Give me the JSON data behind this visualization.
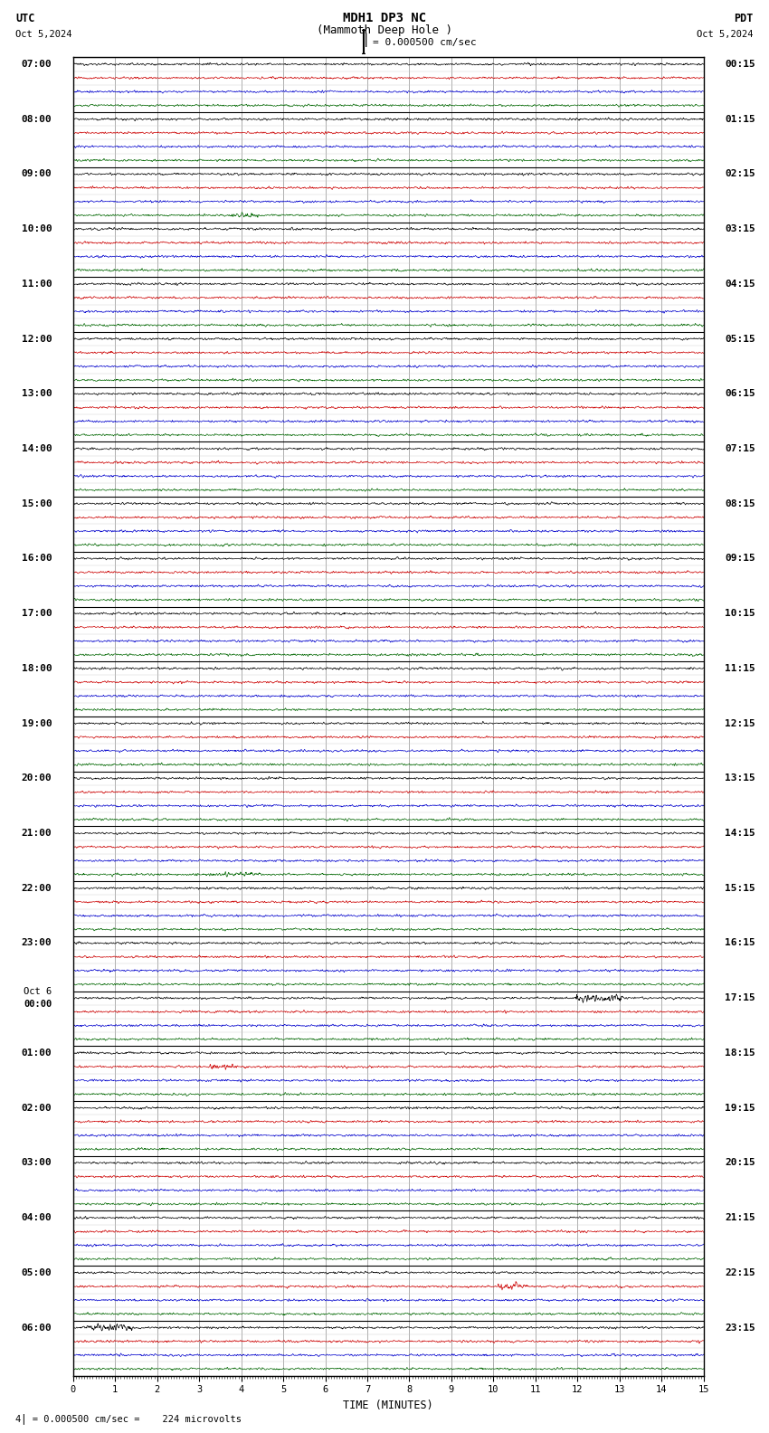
{
  "title_line1": "MDH1 DP3 NC",
  "title_line2": "(Mammoth Deep Hole )",
  "scale_text": "= 0.000500 cm/sec",
  "bottom_text": "= 0.000500 cm/sec =    224 microvolts",
  "utc_label": "UTC",
  "pdt_label": "PDT",
  "date_left": "Oct 5,2024",
  "date_right": "Oct 5,2024",
  "xlabel": "TIME (MINUTES)",
  "xmin": 0,
  "xmax": 15,
  "background_color": "#ffffff",
  "trace_colors": [
    "#000000",
    "#cc0000",
    "#0000cc",
    "#006600"
  ],
  "utc_row_labels": [
    "07:00",
    "",
    "",
    "",
    "08:00",
    "",
    "",
    "",
    "09:00",
    "",
    "",
    "",
    "10:00",
    "",
    "",
    "",
    "11:00",
    "",
    "",
    "",
    "12:00",
    "",
    "",
    "",
    "13:00",
    "",
    "",
    "",
    "14:00",
    "",
    "",
    "",
    "15:00",
    "",
    "",
    "",
    "16:00",
    "",
    "",
    "",
    "17:00",
    "",
    "",
    "",
    "18:00",
    "",
    "",
    "",
    "19:00",
    "",
    "",
    "",
    "20:00",
    "",
    "",
    "",
    "21:00",
    "",
    "",
    "",
    "22:00",
    "",
    "",
    "",
    "23:00",
    "",
    "",
    "",
    "Oct 6",
    "00:00",
    "",
    "",
    "01:00",
    "",
    "",
    "",
    "02:00",
    "",
    "",
    "",
    "03:00",
    "",
    "",
    "",
    "04:00",
    "",
    "",
    "",
    "05:00",
    "",
    "",
    "",
    "06:00",
    "",
    "",
    ""
  ],
  "oct6_row": 68,
  "pdt_row_labels": [
    "00:15",
    "",
    "",
    "",
    "01:15",
    "",
    "",
    "",
    "02:15",
    "",
    "",
    "",
    "03:15",
    "",
    "",
    "",
    "04:15",
    "",
    "",
    "",
    "05:15",
    "",
    "",
    "",
    "06:15",
    "",
    "",
    "",
    "07:15",
    "",
    "",
    "",
    "08:15",
    "",
    "",
    "",
    "09:15",
    "",
    "",
    "",
    "10:15",
    "",
    "",
    "",
    "11:15",
    "",
    "",
    "",
    "12:15",
    "",
    "",
    "",
    "13:15",
    "",
    "",
    "",
    "14:15",
    "",
    "",
    "",
    "15:15",
    "",
    "",
    "",
    "16:15",
    "",
    "",
    "",
    "17:15",
    "",
    "",
    "",
    "18:15",
    "",
    "",
    "",
    "19:15",
    "",
    "",
    "",
    "20:15",
    "",
    "",
    "",
    "21:15",
    "",
    "",
    "",
    "22:15",
    "",
    "",
    "",
    "23:15",
    "",
    "",
    ""
  ],
  "num_rows": 96,
  "noise_amplitude": 0.06,
  "grid_color": "#999999",
  "minor_grid_color": "#cccccc",
  "title_fontsize": 9,
  "label_fontsize": 8,
  "tick_fontsize": 7.5
}
